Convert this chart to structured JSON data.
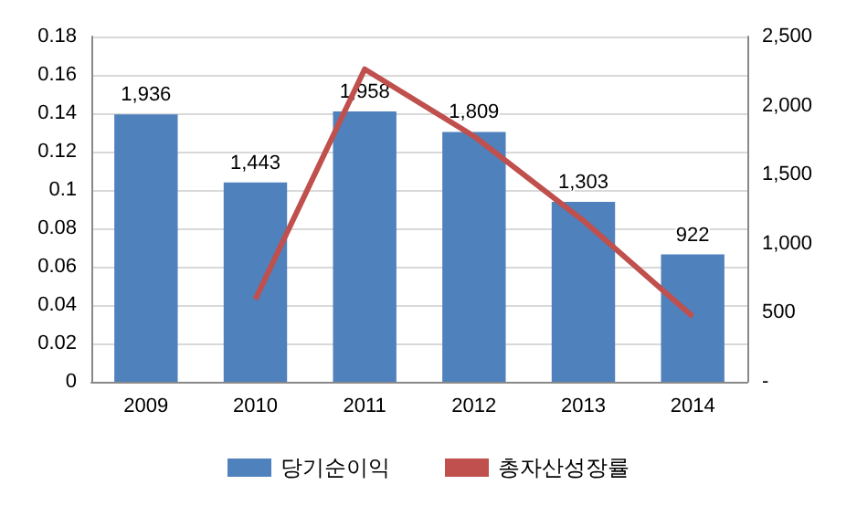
{
  "chart_data": {
    "type": "bar",
    "categories": [
      "2009",
      "2010",
      "2011",
      "2012",
      "2013",
      "2014"
    ],
    "series": [
      {
        "name": "당기순이익",
        "axis": "y2",
        "color": "#4f81bd",
        "values": [
          1936,
          1443,
          1958,
          1809,
          1303,
          922
        ],
        "value_labels": [
          "1,936",
          "1,443",
          "1,958",
          "1,809",
          "1,303",
          "922"
        ]
      },
      {
        "name": "총자산성장률",
        "type": "line",
        "axis": "y",
        "color": "#c0504d",
        "values": [
          null,
          0.043,
          0.163,
          0.128,
          0.084,
          0.034
        ]
      }
    ],
    "ylim": [
      0,
      0.18
    ],
    "yticks": [
      0,
      0.02,
      0.04,
      0.06,
      0.08,
      0.1,
      0.12,
      0.14,
      0.16,
      0.18
    ],
    "y2lim": [
      0,
      2500
    ],
    "y2ticks": [
      {
        "value": 0,
        "label": "-"
      },
      500,
      {
        "value": 1000,
        "label": "1,000"
      },
      {
        "value": 1500,
        "label": "1,500"
      },
      {
        "value": 2000,
        "label": "2,000"
      },
      {
        "value": 2500,
        "label": "2,500"
      }
    ],
    "grid": "y",
    "legend": "bottom",
    "marker": "none"
  }
}
